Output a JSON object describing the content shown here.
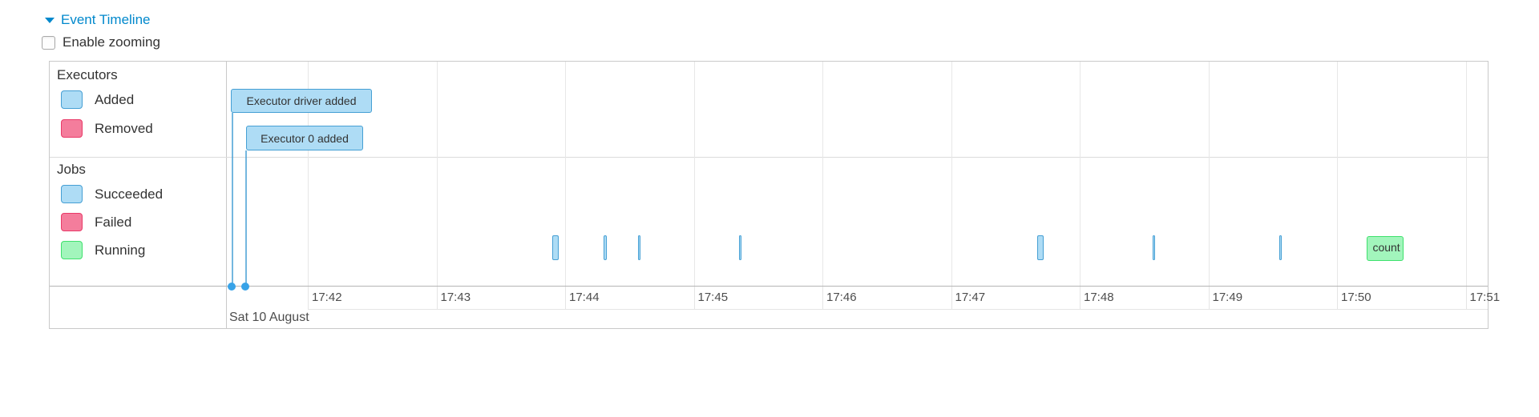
{
  "header": {
    "title": "Event Timeline",
    "zoom_label": "Enable zooming",
    "zoom_checked": false,
    "collapse_arrow_icon": "triangle-down"
  },
  "colors": {
    "link": "#0088cc",
    "text": "#333333",
    "panel_border": "#c9c9c9",
    "grid_line": "#e7e7e7",
    "axis_line": "#b5b5b5",
    "blue_fill": "#aedcf5",
    "blue_border": "#459fd4",
    "pink_fill": "#f47d9c",
    "pink_border": "#e93a68",
    "green_fill": "#a2f5bc",
    "green_border": "#3fe16d",
    "dot": "#38a3e8"
  },
  "legend": {
    "groups": [
      {
        "label": "Executors",
        "items": [
          {
            "label": "Added",
            "color": "blue"
          },
          {
            "label": "Removed",
            "color": "pink"
          }
        ]
      },
      {
        "label": "Jobs",
        "items": [
          {
            "label": "Succeeded",
            "color": "blue"
          },
          {
            "label": "Failed",
            "color": "pink"
          },
          {
            "label": "Running",
            "color": "green"
          }
        ]
      }
    ]
  },
  "timeline": {
    "executor_items": [
      {
        "label": "Executor driver added",
        "time": "17:41:25"
      },
      {
        "label": "Executor 0 added",
        "time": "17:41:31"
      }
    ],
    "job_items": [
      {
        "status": "succeeded",
        "start": "17:43:54",
        "end": "17:43:57"
      },
      {
        "status": "succeeded",
        "start": "17:44:18",
        "end": "17:44:19"
      },
      {
        "status": "succeeded",
        "start": "17:44:34",
        "end": "17:44:35"
      },
      {
        "status": "succeeded",
        "start": "17:45:21",
        "end": "17:45:22"
      },
      {
        "status": "succeeded",
        "start": "17:47:40",
        "end": "17:47:43"
      },
      {
        "status": "succeeded",
        "start": "17:48:34",
        "end": "17:48:35"
      },
      {
        "status": "succeeded",
        "start": "17:49:33",
        "end": "17:49:34"
      },
      {
        "status": "running",
        "label": "count",
        "start": "17:50:14",
        "end": "17:50:31"
      }
    ],
    "axis": {
      "minor_labels": [
        "17:42",
        "17:43",
        "17:44",
        "17:45",
        "17:46",
        "17:47",
        "17:48",
        "17:49",
        "17:50",
        "17:51"
      ],
      "major_label": "Sat 10 August"
    }
  },
  "chart_data": {
    "type": "timeline",
    "title": "Event Timeline",
    "groups": [
      "Executors",
      "Jobs"
    ],
    "x_axis": {
      "visible_range": [
        "17:41:22",
        "17:51:10"
      ],
      "tick_interval": "1 minute",
      "date": "Sat 10 August"
    },
    "events": [
      {
        "group": "Executors",
        "label": "Executor driver added",
        "time": "17:41:25",
        "status": "added"
      },
      {
        "group": "Executors",
        "label": "Executor 0 added",
        "time": "17:41:31",
        "status": "added"
      },
      {
        "group": "Jobs",
        "start": "17:43:54",
        "end": "17:43:57",
        "status": "succeeded"
      },
      {
        "group": "Jobs",
        "start": "17:44:18",
        "end": "17:44:19",
        "status": "succeeded"
      },
      {
        "group": "Jobs",
        "start": "17:44:34",
        "end": "17:44:35",
        "status": "succeeded"
      },
      {
        "group": "Jobs",
        "start": "17:45:21",
        "end": "17:45:22",
        "status": "succeeded"
      },
      {
        "group": "Jobs",
        "start": "17:47:40",
        "end": "17:47:43",
        "status": "succeeded"
      },
      {
        "group": "Jobs",
        "start": "17:48:34",
        "end": "17:48:35",
        "status": "succeeded"
      },
      {
        "group": "Jobs",
        "start": "17:49:33",
        "end": "17:49:34",
        "status": "succeeded"
      },
      {
        "group": "Jobs",
        "label": "count",
        "start": "17:50:14",
        "end": "17:50:31",
        "status": "running"
      }
    ]
  }
}
